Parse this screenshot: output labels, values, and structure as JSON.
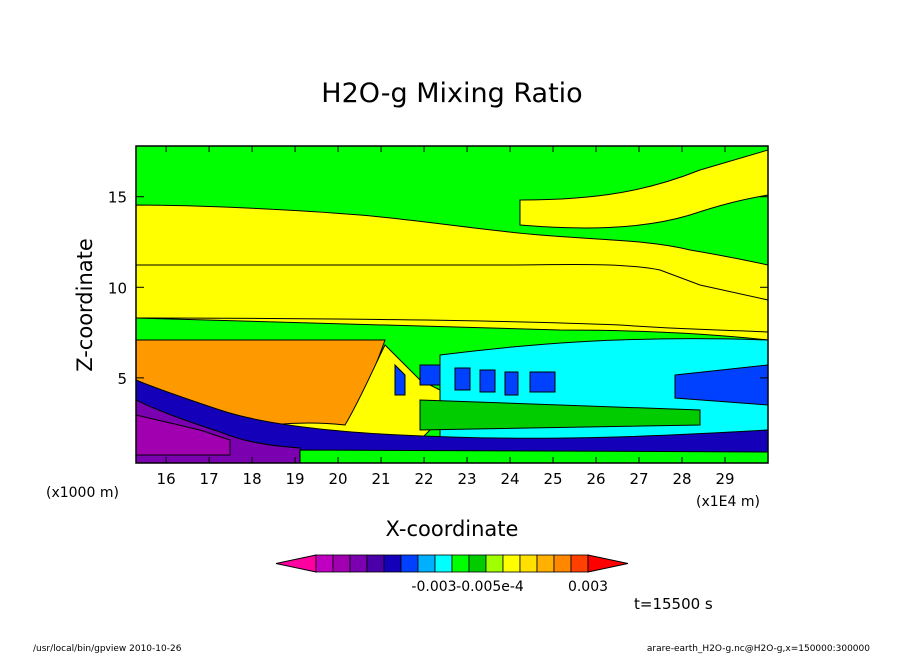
{
  "chart_data": {
    "type": "heatmap",
    "title": "H2O-g Mixing Ratio",
    "xlabel": "X-coordinate",
    "ylabel": "Z-coordinate",
    "x_unit_left": "(x1000 m)",
    "x_unit_right": "(x1E4 m)",
    "xlim": [
      15.3,
      30.0
    ],
    "ylim": [
      0.3,
      17.8
    ],
    "x_ticks": [
      "16",
      "17",
      "18",
      "19",
      "20",
      "21",
      "22",
      "23",
      "24",
      "25",
      "26",
      "27",
      "28",
      "29"
    ],
    "y_ticks": [
      "5",
      "10",
      "15"
    ],
    "colorbar": {
      "colors": [
        "#ff00a0",
        "#c000c0",
        "#a000b0",
        "#7a00b0",
        "#4a00a8",
        "#1400b8",
        "#0040ff",
        "#00b0ff",
        "#00ffff",
        "#00ff00",
        "#00cc00",
        "#a0ff00",
        "#ffff00",
        "#ffe000",
        "#ffb000",
        "#ff8800",
        "#ff4000",
        "#ff0000"
      ],
      "tick_labels": [
        "-0.003",
        "-0.005e-4",
        "0.003"
      ]
    },
    "time_label": "t=15500 s",
    "footer_left": "/usr/local/bin/gpview   2010-10-26",
    "footer_right": "arare-earth_H2O-g.nc@H2O-g,x=150000:300000"
  }
}
